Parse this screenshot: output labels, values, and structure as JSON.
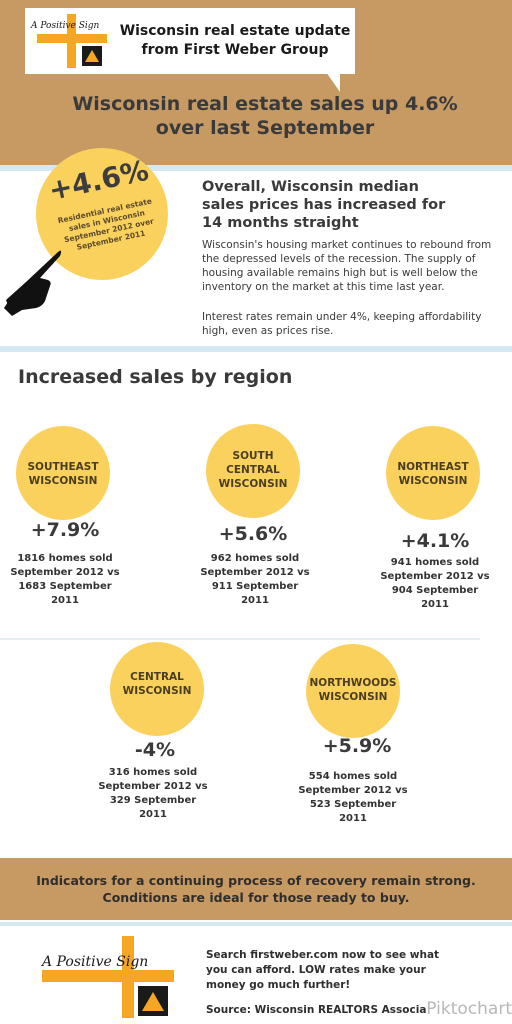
{
  "header": {
    "logo_text": "A Positive Sign",
    "title_line1": "Wisconsin real estate update",
    "title_line2": "from First Weber Group",
    "headline_line1": "Wisconsin real estate sales up 4.6%",
    "headline_line2": "over last September"
  },
  "highlight": {
    "percent": "+4.6%",
    "caption_lines": [
      "Residential real estate",
      "sales in Wisconsin",
      "September 2012 over",
      "September 2011"
    ]
  },
  "summary": {
    "heading_lines": [
      "Overall, Wisconsin median",
      "sales prices has increased for",
      "14 months straight"
    ],
    "paragraph1": "Wisconsin's housing market continues to rebound from the depressed levels of the recession.  The supply of housing available remains high but is well below the inventory on the market at this time last year.",
    "paragraph2": "Interest rates remain under 4%, keeping affordability high, even as prices rise."
  },
  "regions_title": "Increased sales by region",
  "regions": [
    {
      "label": [
        "SOUTHEAST",
        "WISCONSIN"
      ],
      "percent": "+7.9%",
      "detail": [
        "1816 homes sold",
        "September 2012 vs",
        "1683 September",
        "2011"
      ]
    },
    {
      "label": [
        "SOUTH",
        "CENTRAL",
        "WISCONSIN"
      ],
      "percent": "+5.6%",
      "detail": [
        "962 homes sold",
        "September 2012 vs",
        "911 September",
        "2011"
      ]
    },
    {
      "label": [
        "NORTHEAST",
        "WISCONSIN"
      ],
      "percent": "+4.1%",
      "detail": [
        "941 homes sold",
        "September 2012 vs",
        "904 September",
        "2011"
      ]
    },
    {
      "label": [
        "CENTRAL",
        "WISCONSIN"
      ],
      "percent": "-4%",
      "detail": [
        "316 homes sold",
        "September 2012 vs",
        "329 September",
        "2011"
      ]
    },
    {
      "label": [
        "NORTHWOODS",
        "WISCONSIN"
      ],
      "percent": "+5.9%",
      "detail": [
        "554 homes sold",
        "September 2012 vs",
        "523 September",
        "2011"
      ]
    }
  ],
  "conclusion_lines": [
    "Indicators for a continuing process of recovery remain strong.",
    "Conditions are ideal for those ready to buy."
  ],
  "footer": {
    "logo_text": "A Positive Sign",
    "cta_lines": [
      "Search firstweber.com now to see what",
      "you can afford. LOW rates make your",
      "money go much further!"
    ],
    "source": "Source: Wisconsin REALTORS Association",
    "watermark": "Piktochart"
  },
  "colors": {
    "tan": "#c89a63",
    "yellow": "#fbd15e",
    "orange_cross": "#f5a623",
    "light_blue": "#d6e9f3"
  }
}
